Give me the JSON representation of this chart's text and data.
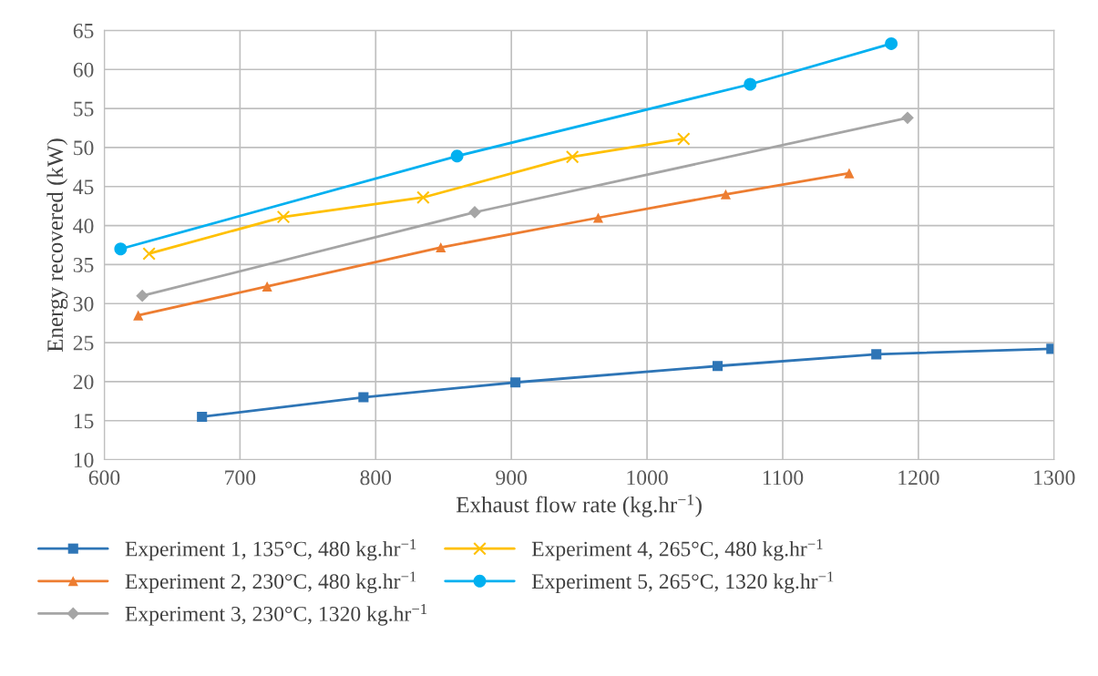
{
  "chart_data": {
    "type": "line",
    "xlabel": "Exhaust flow rate (kg.hr$^{−1}$)",
    "ylabel": "Energy recovered (kW)",
    "xlim": [
      600,
      1300
    ],
    "xticks": [
      600,
      700,
      800,
      900,
      1000,
      1100,
      1200,
      1300
    ],
    "ylim": [
      10,
      65
    ],
    "yticks": [
      10,
      15,
      20,
      25,
      30,
      35,
      40,
      45,
      50,
      55,
      60,
      65
    ],
    "grid": true,
    "legend": "bottom",
    "line_style": "solid",
    "series": [
      {
        "name": "Experiment 1, 135°C, 480 kg.hr$^{−1}$",
        "color": "#2e75b6",
        "marker": "square",
        "x": [
          672,
          791,
          903,
          1052,
          1169,
          1298
        ],
        "values": [
          15.5,
          18.0,
          19.9,
          22.0,
          23.5,
          24.2
        ]
      },
      {
        "name": "Experiment 2, 230°C, 480 kg.hr$^{−1}$",
        "color": "#ed7d31",
        "marker": "triangle",
        "x": [
          625,
          720,
          848,
          964,
          1058,
          1149
        ],
        "values": [
          28.5,
          32.2,
          37.2,
          41.0,
          44.0,
          46.7
        ]
      },
      {
        "name": "Experiment 3, 230°C, 1320 kg.hr$^{−1}$",
        "color": "#a5a5a5",
        "marker": "diamond",
        "x": [
          628,
          873,
          1192
        ],
        "values": [
          31.0,
          41.7,
          53.8
        ]
      },
      {
        "name": "Experiment 4, 265°C, 480 kg.hr$^{−1}$",
        "color": "#ffc000",
        "marker": "cross",
        "x": [
          633,
          732,
          835,
          945,
          1027
        ],
        "values": [
          36.4,
          41.1,
          43.6,
          48.8,
          51.1
        ]
      },
      {
        "name": "Experiment 5, 265°C, 1320 kg.hr$^{−1}$",
        "color": "#00b0f0",
        "marker": "circle",
        "x": [
          612,
          860,
          1076,
          1180
        ],
        "values": [
          37.0,
          48.9,
          58.1,
          63.3
        ]
      }
    ]
  }
}
